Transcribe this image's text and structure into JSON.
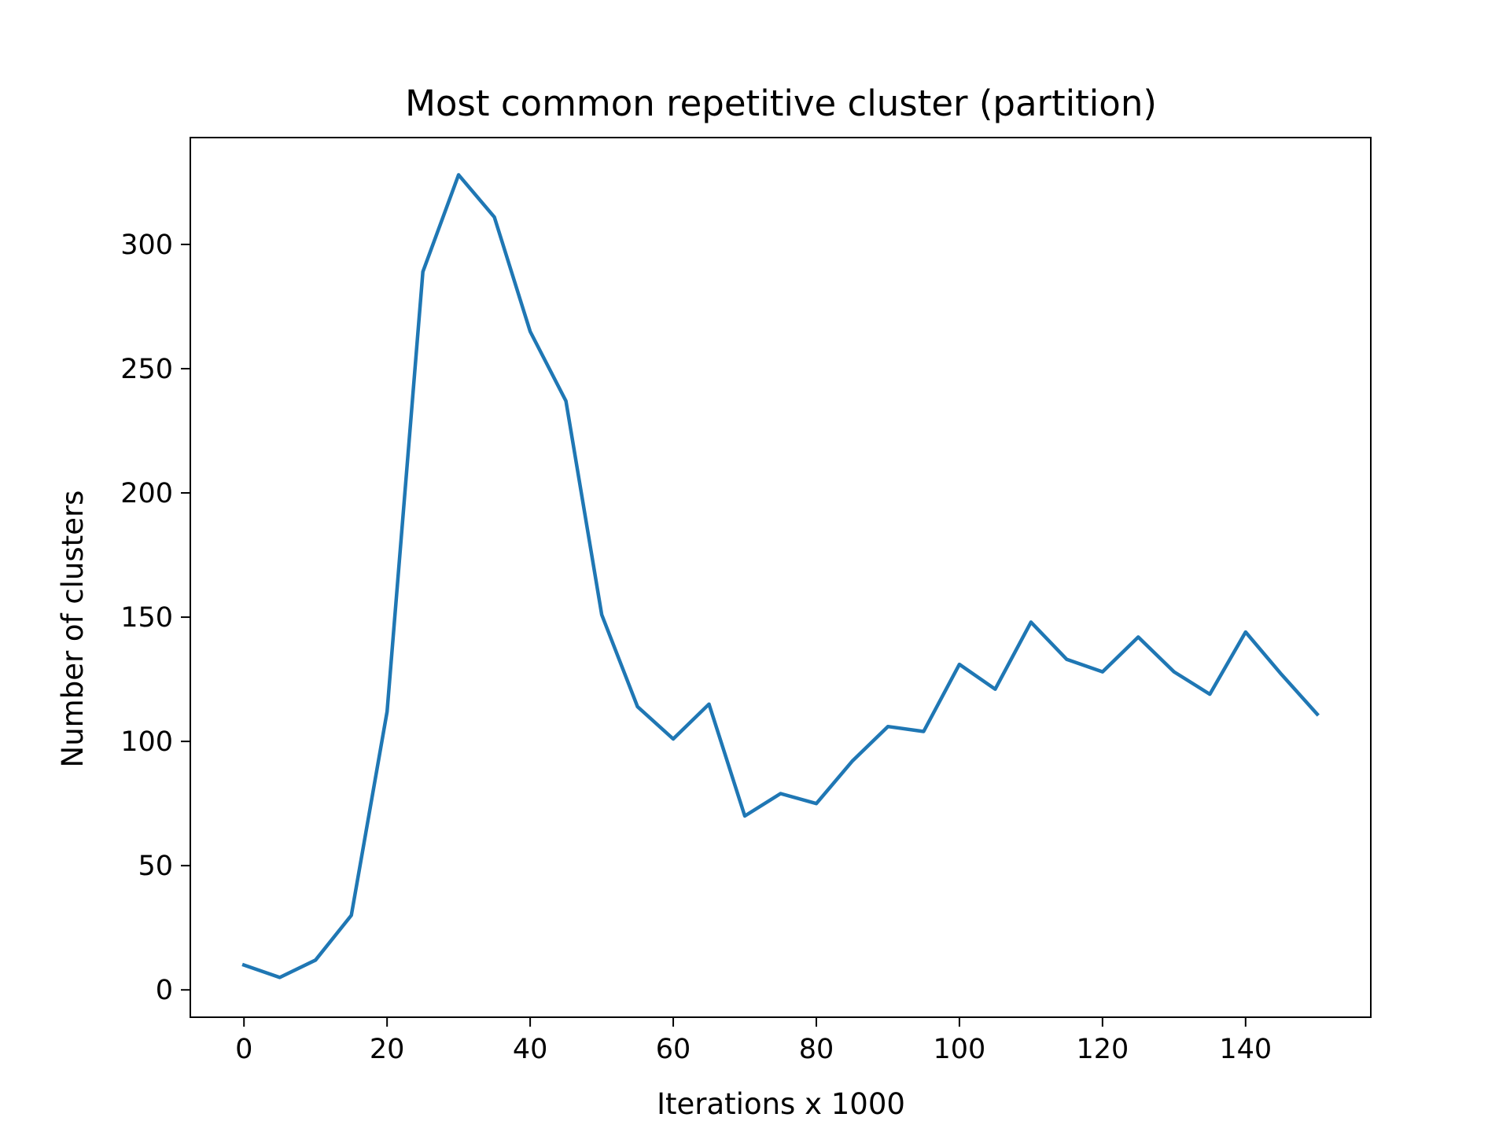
{
  "chart_data": {
    "type": "line",
    "title": "Most common repetitive cluster (partition)",
    "xlabel": "Iterations x 1000",
    "ylabel": "Number of clusters",
    "xlim": [
      -7.5,
      157.5
    ],
    "ylim": [
      -11,
      343
    ],
    "xticks": [
      0,
      20,
      40,
      60,
      80,
      100,
      120,
      140
    ],
    "yticks": [
      0,
      50,
      100,
      150,
      200,
      250,
      300
    ],
    "grid": false,
    "legend": "none",
    "series": [
      {
        "color": "#1f77b4",
        "x": [
          0,
          5,
          10,
          15,
          20,
          25,
          30,
          35,
          40,
          45,
          50,
          55,
          60,
          65,
          70,
          75,
          80,
          85,
          90,
          95,
          100,
          105,
          110,
          115,
          120,
          125,
          130,
          135,
          140,
          145,
          150
        ],
        "y": [
          10,
          5,
          12,
          30,
          112,
          289,
          328,
          311,
          265,
          237,
          151,
          114,
          101,
          115,
          70,
          79,
          75,
          92,
          106,
          104,
          131,
          121,
          148,
          133,
          128,
          142,
          128,
          119,
          144,
          127,
          111
        ]
      }
    ]
  }
}
